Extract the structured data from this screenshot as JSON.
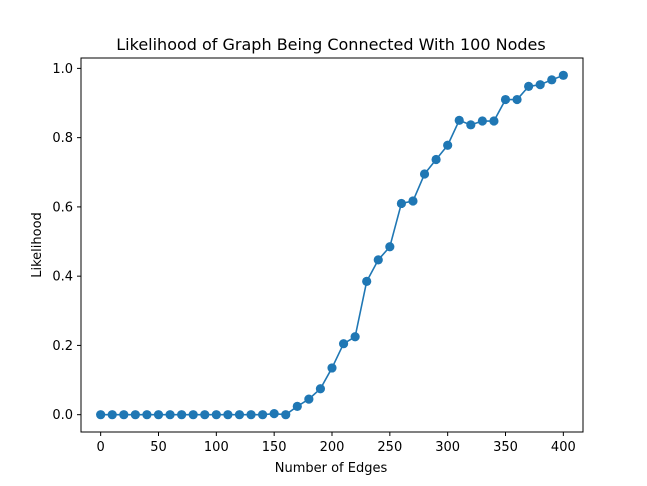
{
  "chart_data": {
    "type": "line",
    "title": "Likelihood of Graph Being Connected With 100 Nodes",
    "xlabel": "Number of Edges",
    "ylabel": "Likelihood",
    "xlim": [
      -17,
      417
    ],
    "ylim": [
      -0.05,
      1.03
    ],
    "xticks": [
      0,
      50,
      100,
      150,
      200,
      250,
      300,
      350,
      400
    ],
    "yticks": [
      0.0,
      0.2,
      0.4,
      0.6,
      0.8,
      1.0
    ],
    "xtick_labels": [
      "0",
      "50",
      "100",
      "150",
      "200",
      "250",
      "300",
      "350",
      "400"
    ],
    "ytick_labels": [
      "0.0",
      "0.2",
      "0.4",
      "0.6",
      "0.8",
      "1.0"
    ],
    "grid": false,
    "series": [
      {
        "color": "#1f77b4",
        "marker": "circle",
        "x": [
          0,
          10,
          20,
          30,
          40,
          50,
          60,
          70,
          80,
          90,
          100,
          110,
          120,
          130,
          140,
          150,
          160,
          170,
          180,
          190,
          200,
          210,
          220,
          230,
          240,
          250,
          260,
          270,
          280,
          290,
          300,
          310,
          320,
          330,
          340,
          350,
          360,
          370,
          380,
          390,
          400
        ],
        "y": [
          0.0,
          0.0,
          0.0,
          0.0,
          0.0,
          0.0,
          0.0,
          0.0,
          0.0,
          0.0,
          0.0,
          0.0,
          0.0,
          0.0,
          0.0,
          0.003,
          0.0,
          0.024,
          0.045,
          0.075,
          0.135,
          0.205,
          0.225,
          0.385,
          0.447,
          0.485,
          0.61,
          0.617,
          0.695,
          0.737,
          0.778,
          0.85,
          0.837,
          0.848,
          0.848,
          0.91,
          0.91,
          0.948,
          0.953,
          0.967,
          0.98
        ]
      }
    ]
  }
}
